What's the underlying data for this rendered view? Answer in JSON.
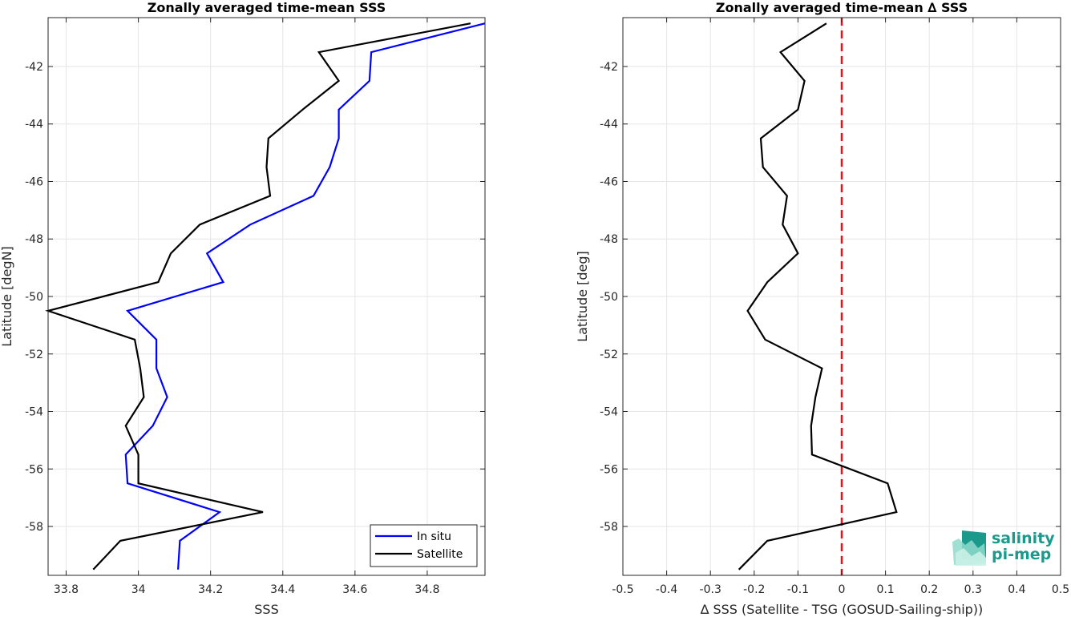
{
  "chart_data": [
    {
      "type": "line",
      "title": "Zonally averaged time-mean SSS",
      "xlabel": "SSS",
      "ylabel": "Latitude [degN]",
      "xlim": [
        33.75,
        34.96
      ],
      "ylim": [
        -59.7,
        -40.3
      ],
      "xticks": [
        33.8,
        34,
        34.2,
        34.4,
        34.6,
        34.8
      ],
      "xtick_labels": [
        "33.8",
        "34",
        "34.2",
        "34.4",
        "34.6",
        "34.8"
      ],
      "yticks": [
        -42,
        -44,
        -46,
        -48,
        -50,
        -52,
        -54,
        -56,
        -58
      ],
      "ytick_labels": [
        "-42",
        "-44",
        "-46",
        "-48",
        "-50",
        "-52",
        "-54",
        "-56",
        "-58"
      ],
      "grid": true,
      "legend_position": "bottom-right",
      "y": [
        -40.5,
        -41.5,
        -42.5,
        -43.5,
        -44.5,
        -45.5,
        -46.5,
        -47.5,
        -48.5,
        -49.5,
        -50.5,
        -51.5,
        -52.5,
        -53.5,
        -54.5,
        -55.5,
        -56.5,
        -57.5,
        -58.5,
        -59.5
      ],
      "series": [
        {
          "name": "In situ",
          "color": "#0000ff",
          "x": [
            34.96,
            34.645,
            34.64,
            34.555,
            34.555,
            34.53,
            34.485,
            34.31,
            34.19,
            34.235,
            33.97,
            34.05,
            34.05,
            34.08,
            34.04,
            33.965,
            33.97,
            34.225,
            34.115,
            34.11
          ]
        },
        {
          "name": "Satellite",
          "color": "#000000",
          "x": [
            34.92,
            34.5,
            34.555,
            34.455,
            34.36,
            34.355,
            34.365,
            34.17,
            34.09,
            34.055,
            33.75,
            33.99,
            34.005,
            34.015,
            33.965,
            34.0,
            34.0,
            34.345,
            33.95,
            33.875
          ]
        }
      ]
    },
    {
      "type": "line",
      "title": "Zonally averaged time-mean ∆ SSS",
      "xlabel": "∆ SSS (Satellite - TSG (GOSUD-Sailing-ship))",
      "ylabel": "Latitude [deg]",
      "xlim": [
        -0.5,
        0.5
      ],
      "ylim": [
        -59.7,
        -40.3
      ],
      "xticks": [
        -0.5,
        -0.4,
        -0.3,
        -0.2,
        -0.1,
        0,
        0.1,
        0.2,
        0.3,
        0.4,
        0.5
      ],
      "xtick_labels": [
        "-0.5",
        "-0.4",
        "-0.3",
        "-0.2",
        "-0.1",
        "0",
        "0.1",
        "0.2",
        "0.3",
        "0.4",
        "0.5"
      ],
      "yticks": [
        -42,
        -44,
        -46,
        -48,
        -50,
        -52,
        -54,
        -56,
        -58
      ],
      "ytick_labels": [
        "-42",
        "-44",
        "-46",
        "-48",
        "-50",
        "-52",
        "-54",
        "-56",
        "-58"
      ],
      "grid": true,
      "zero_line": {
        "x": 0,
        "color": "#e8131a",
        "style": "dashed"
      },
      "y": [
        -40.5,
        -41.5,
        -42.5,
        -43.5,
        -44.5,
        -45.5,
        -46.5,
        -47.5,
        -48.5,
        -49.5,
        -50.5,
        -51.5,
        -52.5,
        -53.5,
        -54.5,
        -55.5,
        -56.5,
        -57.5,
        -58.5,
        -59.5
      ],
      "series": [
        {
          "color": "#000000",
          "x": [
            -0.035,
            -0.14,
            -0.085,
            -0.1,
            -0.185,
            -0.18,
            -0.125,
            -0.135,
            -0.1,
            -0.17,
            -0.215,
            -0.175,
            -0.045,
            -0.06,
            -0.07,
            -0.068,
            0.105,
            0.125,
            -0.17,
            -0.235
          ]
        }
      ]
    }
  ],
  "logo": {
    "line1": "salinity",
    "line2": "pi-mep",
    "color": "#1b9a8c"
  }
}
